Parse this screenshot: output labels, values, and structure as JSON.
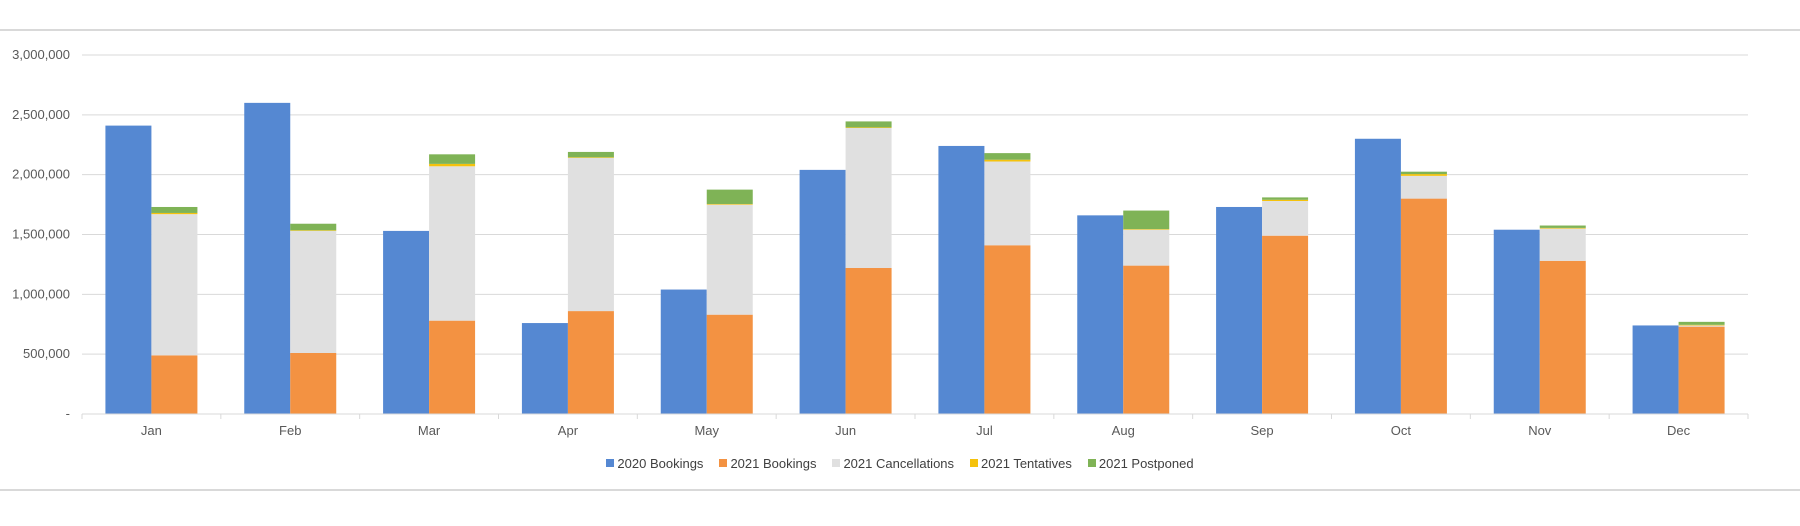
{
  "chart_data": {
    "type": "bar",
    "title": "",
    "xlabel": "",
    "ylabel": "",
    "ylim": [
      0,
      3000000
    ],
    "y_ticks": [
      0,
      500000,
      1000000,
      1500000,
      2000000,
      2500000,
      3000000
    ],
    "y_tick_labels": [
      "-",
      "500,000",
      "1,000,000",
      "1,500,000",
      "2,000,000",
      "2,500,000",
      "3,000,000"
    ],
    "grid": true,
    "legend_position": "bottom",
    "categories": [
      "Jan",
      "Feb",
      "Mar",
      "Apr",
      "May",
      "Jun",
      "Jul",
      "Aug",
      "Sep",
      "Oct",
      "Nov",
      "Dec"
    ],
    "groups": [
      {
        "stack": "2020",
        "series": [
          {
            "name": "2020 Bookings",
            "color": "#5588d2",
            "values": [
              2410000,
              2600000,
              1530000,
              760000,
              1040000,
              2040000,
              2240000,
              1660000,
              1730000,
              2300000,
              1540000,
              740000
            ]
          }
        ]
      },
      {
        "stack": "2021",
        "series": [
          {
            "name": "2021 Bookings",
            "color": "#f39242",
            "values": [
              490000,
              510000,
              780000,
              860000,
              830000,
              1220000,
              1410000,
              1240000,
              1490000,
              1800000,
              1280000,
              730000
            ]
          },
          {
            "name": "2021 Cancellations",
            "color": "#e0e0e0",
            "values": [
              1180000,
              1020000,
              1290000,
              1280000,
              920000,
              1170000,
              700000,
              300000,
              290000,
              190000,
              270000,
              10000
            ]
          },
          {
            "name": "2021 Tentatives",
            "color": "#f5c20c",
            "values": [
              10000,
              5000,
              20000,
              5000,
              5000,
              5000,
              15000,
              5000,
              10000,
              15000,
              5000,
              5000
            ]
          },
          {
            "name": "2021 Postponed",
            "color": "#7fb356",
            "values": [
              50000,
              55000,
              80000,
              45000,
              120000,
              50000,
              55000,
              155000,
              20000,
              20000,
              20000,
              25000
            ]
          }
        ]
      }
    ]
  }
}
